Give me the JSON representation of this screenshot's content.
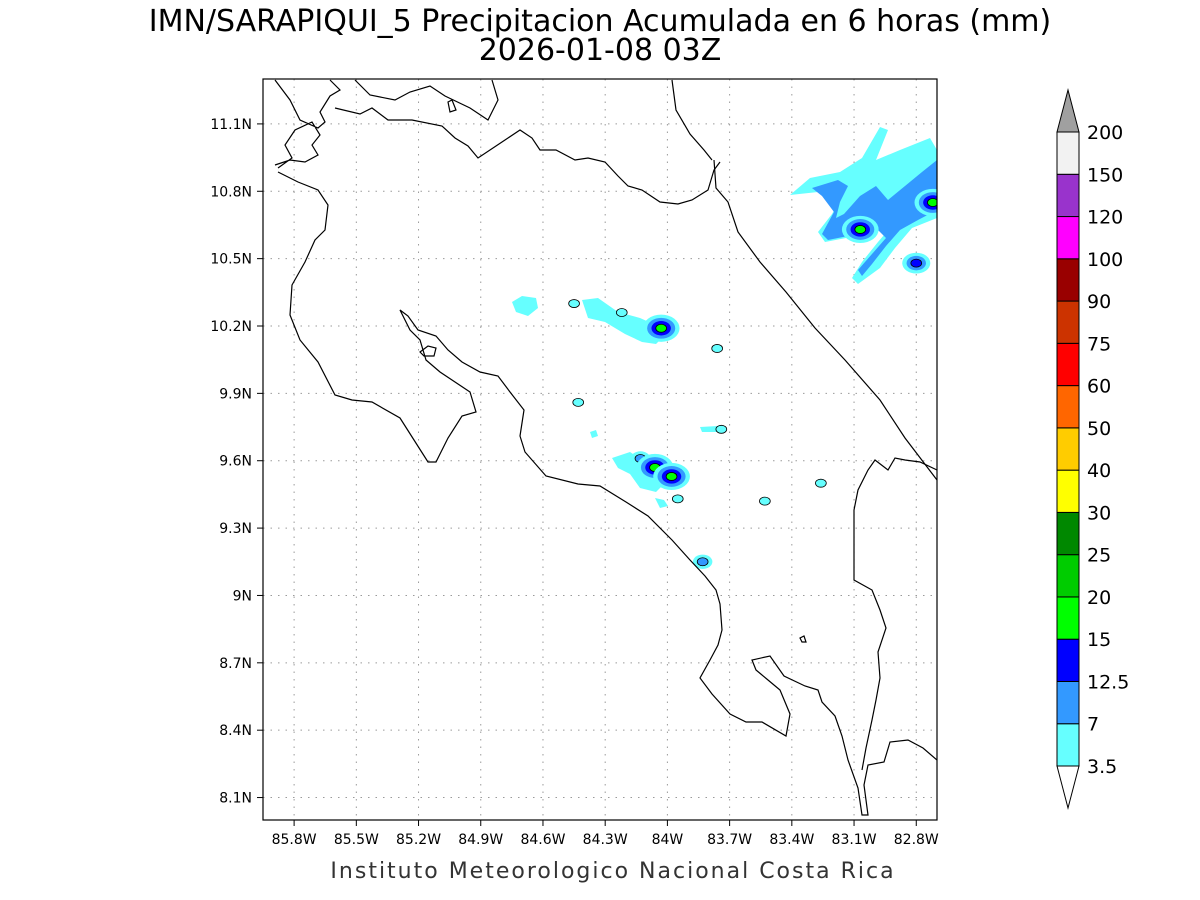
{
  "header": {
    "title": "IMN/SARAPIQUI_5 Precipitacion Acumulada en 6 horas (mm)",
    "subtitle": "2026-01-08 03Z"
  },
  "footer": {
    "credit": "Instituto Meteorologico Nacional Costa Rica"
  },
  "map": {
    "lon_range": [
      -85.95,
      -82.7
    ],
    "lat_range": [
      8.0,
      11.3
    ],
    "lon_ticks": [
      -85.8,
      -85.5,
      -85.2,
      -84.9,
      -84.6,
      -84.3,
      -84.0,
      -83.7,
      -83.4,
      -83.1,
      -82.8
    ],
    "lon_tick_labels": [
      "85.8W",
      "85.5W",
      "85.2W",
      "84.9W",
      "84.6W",
      "84.3W",
      "84W",
      "83.7W",
      "83.4W",
      "83.1W",
      "82.8W"
    ],
    "lat_ticks": [
      11.1,
      10.8,
      10.5,
      10.2,
      9.9,
      9.6,
      9.3,
      9.0,
      8.7,
      8.4,
      8.1
    ],
    "lat_tick_labels": [
      "11.1N",
      "10.8N",
      "10.5N",
      "10.2N",
      "9.9N",
      "9.6N",
      "9.3N",
      "9N",
      "8.7N",
      "8.4N",
      "8.1N"
    ],
    "grid": true
  },
  "colorbar": {
    "levels": [
      "3.5",
      "7",
      "12.5",
      "15",
      "20",
      "25",
      "30",
      "40",
      "50",
      "60",
      "75",
      "90",
      "100",
      "120",
      "150",
      "200"
    ],
    "colors": [
      "#66ffff",
      "#3399ff",
      "#0000ff",
      "#00ff00",
      "#00cc00",
      "#008800",
      "#ffff00",
      "#ffcc00",
      "#ff6600",
      "#ff0000",
      "#cc3300",
      "#990000",
      "#ff00ff",
      "#9933cc",
      "#f2f2f2",
      "#a0a0a0"
    ]
  },
  "precipitation_cells": [
    {
      "lon": -84.45,
      "lat": 10.3,
      "level": "3.5"
    },
    {
      "lon": -84.22,
      "lat": 10.26,
      "level": "3.5"
    },
    {
      "lon": -84.03,
      "lat": 10.19,
      "level": "15"
    },
    {
      "lon": -83.76,
      "lat": 10.1,
      "level": "3.5"
    },
    {
      "lon": -84.43,
      "lat": 9.86,
      "level": "3.5"
    },
    {
      "lon": -84.13,
      "lat": 9.61,
      "level": "7"
    },
    {
      "lon": -84.06,
      "lat": 9.57,
      "level": "15"
    },
    {
      "lon": -83.98,
      "lat": 9.53,
      "level": "15"
    },
    {
      "lon": -83.95,
      "lat": 9.43,
      "level": "3.5"
    },
    {
      "lon": -83.74,
      "lat": 9.74,
      "level": "3.5"
    },
    {
      "lon": -83.83,
      "lat": 9.15,
      "level": "7"
    },
    {
      "lon": -83.53,
      "lat": 9.42,
      "level": "3.5"
    },
    {
      "lon": -83.26,
      "lat": 9.5,
      "level": "3.5"
    },
    {
      "lon": -83.07,
      "lat": 10.63,
      "level": "15"
    },
    {
      "lon": -82.8,
      "lat": 10.48,
      "level": "12.5"
    },
    {
      "lon": -82.72,
      "lat": 10.75,
      "level": "15"
    }
  ]
}
